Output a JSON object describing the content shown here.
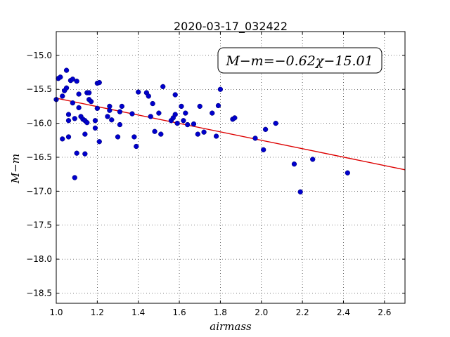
{
  "chart_data": {
    "type": "scatter",
    "title": "2020-03-17_032422",
    "xlabel": "airmass",
    "ylabel": "M−m",
    "xlim": [
      1.0,
      2.7
    ],
    "ylim": [
      -18.65,
      -14.65
    ],
    "y_inverted": true,
    "grid": true,
    "x_ticks": [
      "1.0",
      "1.2",
      "1.4",
      "1.6",
      "1.8",
      "2.0",
      "2.2",
      "2.4",
      "2.6"
    ],
    "x_tick_values": [
      1.0,
      1.2,
      1.4,
      1.6,
      1.8,
      2.0,
      2.2,
      2.4,
      2.6
    ],
    "y_ticks": [
      "−15.0",
      "−15.5",
      "−16.0",
      "−16.5",
      "−17.0",
      "−17.5",
      "−18.0",
      "−18.5"
    ],
    "y_tick_values": [
      -15.0,
      -15.5,
      -16.0,
      -16.5,
      -17.0,
      -17.5,
      -18.0,
      -18.5
    ],
    "fit": {
      "slope": -0.62,
      "intercept": -15.01,
      "label": "M−m=−0.62χ−15.01",
      "color": "#dd0000"
    },
    "point_color": "#0000cc",
    "points": [
      {
        "x": 1.0,
        "y": -15.65
      },
      {
        "x": 1.01,
        "y": -15.34
      },
      {
        "x": 1.02,
        "y": -15.32
      },
      {
        "x": 1.03,
        "y": -15.6
      },
      {
        "x": 1.03,
        "y": -16.23
      },
      {
        "x": 1.04,
        "y": -15.52
      },
      {
        "x": 1.05,
        "y": -15.48
      },
      {
        "x": 1.05,
        "y": -15.22
      },
      {
        "x": 1.06,
        "y": -15.87
      },
      {
        "x": 1.06,
        "y": -15.96
      },
      {
        "x": 1.06,
        "y": -16.2
      },
      {
        "x": 1.07,
        "y": -15.37
      },
      {
        "x": 1.08,
        "y": -15.35
      },
      {
        "x": 1.08,
        "y": -15.7
      },
      {
        "x": 1.09,
        "y": -15.93
      },
      {
        "x": 1.09,
        "y": -16.8
      },
      {
        "x": 1.1,
        "y": -15.38
      },
      {
        "x": 1.1,
        "y": -16.44
      },
      {
        "x": 1.11,
        "y": -15.77
      },
      {
        "x": 1.11,
        "y": -15.57
      },
      {
        "x": 1.12,
        "y": -15.9
      },
      {
        "x": 1.13,
        "y": -15.94
      },
      {
        "x": 1.14,
        "y": -16.16
      },
      {
        "x": 1.14,
        "y": -15.96
      },
      {
        "x": 1.14,
        "y": -16.45
      },
      {
        "x": 1.15,
        "y": -15.55
      },
      {
        "x": 1.15,
        "y": -15.99
      },
      {
        "x": 1.16,
        "y": -15.55
      },
      {
        "x": 1.16,
        "y": -15.65
      },
      {
        "x": 1.17,
        "y": -15.68
      },
      {
        "x": 1.19,
        "y": -16.07
      },
      {
        "x": 1.19,
        "y": -15.96
      },
      {
        "x": 1.2,
        "y": -15.78
      },
      {
        "x": 1.2,
        "y": -15.41
      },
      {
        "x": 1.21,
        "y": -15.4
      },
      {
        "x": 1.21,
        "y": -16.27
      },
      {
        "x": 1.25,
        "y": -15.9
      },
      {
        "x": 1.26,
        "y": -15.75
      },
      {
        "x": 1.26,
        "y": -15.81
      },
      {
        "x": 1.27,
        "y": -15.95
      },
      {
        "x": 1.3,
        "y": -16.2
      },
      {
        "x": 1.31,
        "y": -16.02
      },
      {
        "x": 1.31,
        "y": -15.83
      },
      {
        "x": 1.32,
        "y": -15.75
      },
      {
        "x": 1.37,
        "y": -15.86
      },
      {
        "x": 1.38,
        "y": -16.2
      },
      {
        "x": 1.39,
        "y": -16.34
      },
      {
        "x": 1.4,
        "y": -15.54
      },
      {
        "x": 1.44,
        "y": -15.55
      },
      {
        "x": 1.45,
        "y": -15.6
      },
      {
        "x": 1.46,
        "y": -15.9
      },
      {
        "x": 1.47,
        "y": -15.71
      },
      {
        "x": 1.48,
        "y": -16.12
      },
      {
        "x": 1.5,
        "y": -15.85
      },
      {
        "x": 1.51,
        "y": -16.16
      },
      {
        "x": 1.52,
        "y": -15.46
      },
      {
        "x": 1.56,
        "y": -15.96
      },
      {
        "x": 1.57,
        "y": -15.92
      },
      {
        "x": 1.58,
        "y": -15.58
      },
      {
        "x": 1.58,
        "y": -15.87
      },
      {
        "x": 1.59,
        "y": -16.0
      },
      {
        "x": 1.61,
        "y": -15.75
      },
      {
        "x": 1.62,
        "y": -15.96
      },
      {
        "x": 1.63,
        "y": -15.85
      },
      {
        "x": 1.64,
        "y": -16.02
      },
      {
        "x": 1.67,
        "y": -16.01
      },
      {
        "x": 1.69,
        "y": -16.16
      },
      {
        "x": 1.7,
        "y": -15.75
      },
      {
        "x": 1.72,
        "y": -16.13
      },
      {
        "x": 1.76,
        "y": -15.85
      },
      {
        "x": 1.78,
        "y": -16.19
      },
      {
        "x": 1.79,
        "y": -15.74
      },
      {
        "x": 1.8,
        "y": -15.5
      },
      {
        "x": 1.86,
        "y": -15.94
      },
      {
        "x": 1.87,
        "y": -15.92
      },
      {
        "x": 1.97,
        "y": -16.22
      },
      {
        "x": 2.01,
        "y": -16.39
      },
      {
        "x": 2.02,
        "y": -16.09
      },
      {
        "x": 2.07,
        "y": -16.0
      },
      {
        "x": 2.16,
        "y": -16.6
      },
      {
        "x": 2.19,
        "y": -17.01
      },
      {
        "x": 2.25,
        "y": -16.53
      },
      {
        "x": 2.42,
        "y": -16.73
      }
    ]
  }
}
